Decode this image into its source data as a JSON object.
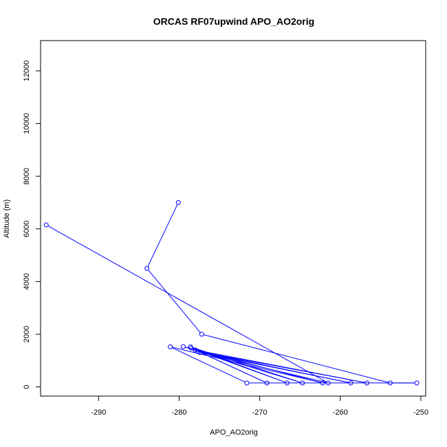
{
  "chart_data": {
    "type": "line",
    "title": "ORCAS RF07upwind APO_AO2orig",
    "xlabel": "APO_AO2orig",
    "ylabel": "Altitude (m)",
    "xlim": [
      -297.2,
      -249.4
    ],
    "ylim": [
      -350,
      13150
    ],
    "x_ticks": [
      -290,
      -280,
      -270,
      -260,
      -250
    ],
    "y_ticks": [
      0,
      2000,
      4000,
      6000,
      8000,
      10000,
      12000
    ],
    "x_tick_labels": [
      "-290",
      "-280",
      "-270",
      "-260",
      "-250"
    ],
    "y_tick_labels": [
      "0",
      "2000",
      "4000",
      "6000",
      "8000",
      "10000",
      "12000"
    ],
    "grid": false,
    "legend": "none",
    "series": [
      {
        "color": "#0000ff",
        "marker": "open-circle",
        "points": [
          {
            "x": -280.1,
            "y": 7000
          },
          {
            "x": -284.0,
            "y": 4500
          },
          {
            "x": -277.2,
            "y": 2000
          },
          {
            "x": -253.8,
            "y": 150
          },
          {
            "x": -250.5,
            "y": 150
          },
          {
            "x": -271.6,
            "y": 150
          },
          {
            "x": -281.1,
            "y": 1520
          },
          {
            "x": -262.2,
            "y": 150
          },
          {
            "x": -279.5,
            "y": 1530
          },
          {
            "x": -264.7,
            "y": 150
          },
          {
            "x": -278.6,
            "y": 1520
          },
          {
            "x": -266.6,
            "y": 150
          },
          {
            "x": -278.5,
            "y": 1470
          },
          {
            "x": -269.1,
            "y": 150
          },
          {
            "x": -278.0,
            "y": 1400
          },
          {
            "x": -256.7,
            "y": 150
          },
          {
            "x": -277.7,
            "y": 1350
          },
          {
            "x": -258.7,
            "y": 150
          },
          {
            "x": -277.4,
            "y": 1300
          },
          {
            "x": -261.5,
            "y": 150
          },
          {
            "x": -296.5,
            "y": 6150
          }
        ]
      }
    ]
  }
}
